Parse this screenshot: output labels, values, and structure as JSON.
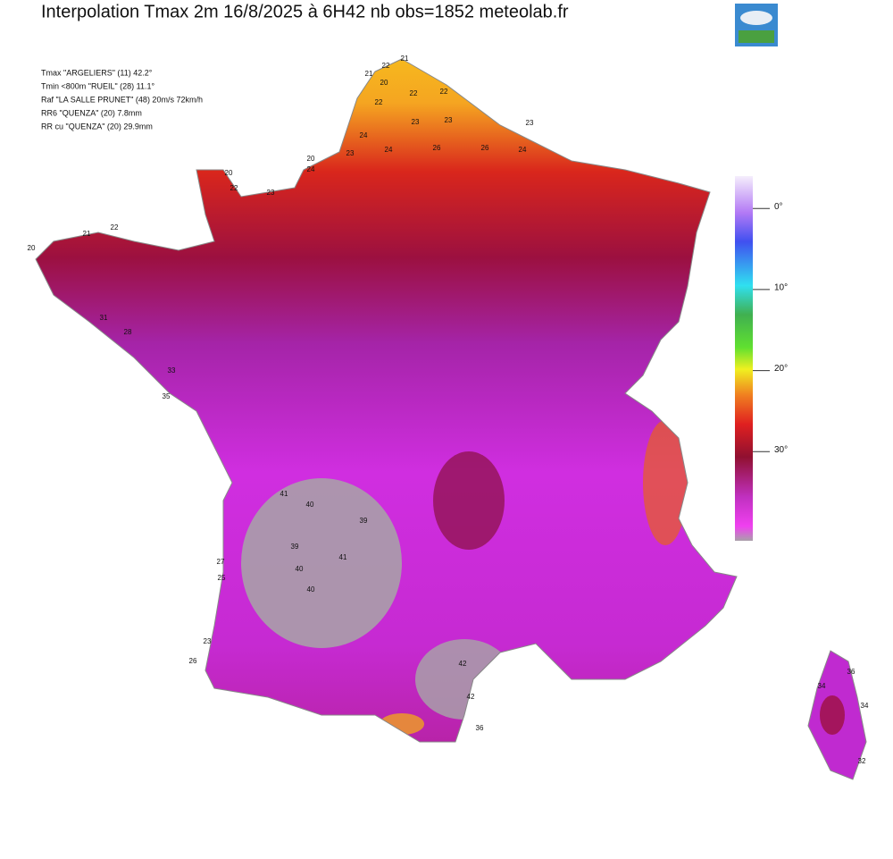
{
  "header": {
    "title": "Interpolation Tmax 2m  16/8/2025 à 6H42 nb obs=1852  meteolab.fr"
  },
  "stats": [
    "Tmax \"ARGELIERS\" (11) 42.2°",
    "Tmin <800m \"RUEIL\" (28)  11.1°",
    "Raf  \"LA SALLE PRUNET\" (48)  20m/s 72km/h",
    "RR6 \"QUENZA\" (20)  7.8mm",
    "RR cu \"QUENZA\" (20)  29.9mm"
  ],
  "scale": {
    "clim": [
      -4,
      41
    ],
    "ticks": [
      {
        "value": 0,
        "label": "0°"
      },
      {
        "value": 10,
        "label": "10°"
      },
      {
        "value": 20,
        "label": "20°"
      },
      {
        "value": 30,
        "label": "30°"
      }
    ]
  },
  "map": {
    "stations": [
      21,
      22,
      21,
      20,
      22,
      22,
      22,
      23,
      23,
      23,
      24,
      23,
      24,
      26,
      26,
      24,
      20,
      24,
      20,
      22,
      23,
      22,
      21,
      20,
      31,
      28,
      33,
      35,
      41,
      40,
      39,
      39,
      41,
      40,
      40,
      42,
      42,
      36,
      27,
      25,
      23,
      26,
      34,
      36,
      34,
      32
    ]
  }
}
